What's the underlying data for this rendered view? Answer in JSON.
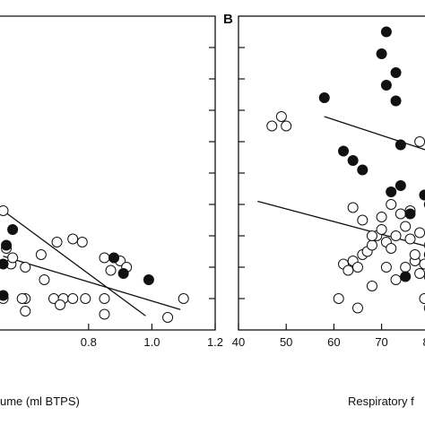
{
  "chart_data": [
    {
      "type": "scatter",
      "panel": "A",
      "xlabel": "ume (ml BTPS)",
      "ylabel": "",
      "xlim": [
        0.52,
        1.2
      ],
      "ylim": [
        0.0,
        1.0
      ],
      "xticks": [
        0.8,
        1.0,
        1.2
      ],
      "xtick_labels": [
        "0.8",
        "1.0",
        "1.2"
      ],
      "yticks": [
        0.1,
        0.2,
        0.3,
        0.4,
        0.5,
        0.6,
        0.7,
        0.8,
        0.9
      ],
      "grid": false,
      "series": [
        {
          "marker": "open-circle",
          "points": [
            [
              0.53,
              0.38
            ],
            [
              0.54,
              0.26
            ],
            [
              0.555,
              0.21
            ],
            [
              0.56,
              0.23
            ],
            [
              0.6,
              0.2
            ],
            [
              0.65,
              0.24
            ],
            [
              0.66,
              0.16
            ],
            [
              0.7,
              0.28
            ],
            [
              0.75,
              0.29
            ],
            [
              0.78,
              0.28
            ],
            [
              0.85,
              0.23
            ],
            [
              0.87,
              0.19
            ],
            [
              0.9,
              0.22
            ],
            [
              0.92,
              0.2
            ],
            [
              0.69,
              0.1
            ],
            [
              0.72,
              0.1
            ],
            [
              0.75,
              0.1
            ],
            [
              0.79,
              0.1
            ],
            [
              0.6,
              0.1
            ],
            [
              0.6,
              0.06
            ],
            [
              0.59,
              0.1
            ],
            [
              0.85,
              0.05
            ],
            [
              0.85,
              0.1
            ],
            [
              1.05,
              0.04
            ],
            [
              1.1,
              0.1
            ],
            [
              0.71,
              0.08
            ],
            [
              0.53,
              0.1
            ]
          ]
        },
        {
          "marker": "filled-circle",
          "points": [
            [
              0.54,
              0.27
            ],
            [
              0.56,
              0.32
            ],
            [
              0.88,
              0.23
            ],
            [
              0.91,
              0.18
            ],
            [
              0.99,
              0.16
            ],
            [
              0.53,
              0.21
            ],
            [
              0.53,
              0.11
            ]
          ]
        }
      ],
      "fit_lines": [
        {
          "x": [
            0.53,
            0.98
          ],
          "y": [
            0.38,
            0.045
          ]
        },
        {
          "x": [
            0.53,
            1.09
          ],
          "y": [
            0.235,
            0.065
          ]
        }
      ]
    },
    {
      "type": "scatter",
      "panel": "B",
      "xlabel": "Respiratory f",
      "ylabel": "",
      "xlim": [
        40,
        87
      ],
      "ylim": [
        0.0,
        1.0
      ],
      "xticks": [
        40,
        50,
        60,
        70,
        80
      ],
      "xtick_labels": [
        "40",
        "50",
        "60",
        "70",
        "80"
      ],
      "yticks": [
        0.1,
        0.2,
        0.3,
        0.4,
        0.5,
        0.6,
        0.7,
        0.8,
        0.9
      ],
      "grid": false,
      "series": [
        {
          "marker": "open-circle",
          "points": [
            [
              47,
              0.65
            ],
            [
              49,
              0.68
            ],
            [
              50,
              0.65
            ],
            [
              62,
              0.21
            ],
            [
              63,
              0.19
            ],
            [
              64,
              0.22
            ],
            [
              65,
              0.2
            ],
            [
              66,
              0.24
            ],
            [
              67,
              0.25
            ],
            [
              68,
              0.27
            ],
            [
              69,
              0.3
            ],
            [
              70,
              0.32
            ],
            [
              71,
              0.28
            ],
            [
              72,
              0.26
            ],
            [
              73,
              0.3
            ],
            [
              74,
              0.37
            ],
            [
              75,
              0.33
            ],
            [
              76,
              0.29
            ],
            [
              77,
              0.22
            ],
            [
              78,
              0.18
            ],
            [
              79,
              0.21
            ],
            [
              80,
              0.17
            ],
            [
              81,
              0.18
            ],
            [
              82,
              0.23
            ],
            [
              83,
              0.21
            ],
            [
              64,
              0.39
            ],
            [
              66,
              0.35
            ],
            [
              68,
              0.3
            ],
            [
              70,
              0.36
            ],
            [
              72,
              0.4
            ],
            [
              76,
              0.38
            ],
            [
              78,
              0.31
            ],
            [
              80,
              0.27
            ],
            [
              78,
              0.6
            ],
            [
              83,
              0.6
            ],
            [
              61,
              0.1
            ],
            [
              65,
              0.07
            ],
            [
              68,
              0.14
            ],
            [
              71,
              0.2
            ],
            [
              73,
              0.16
            ],
            [
              75,
              0.2
            ],
            [
              77,
              0.24
            ],
            [
              79,
              0.1
            ],
            [
              80,
              0.07
            ],
            [
              84,
              0.13
            ],
            [
              85,
              0.19
            ]
          ]
        },
        {
          "marker": "filled-circle",
          "points": [
            [
              58,
              0.74
            ],
            [
              62,
              0.57
            ],
            [
              64,
              0.54
            ],
            [
              66,
              0.51
            ],
            [
              70,
              0.88
            ],
            [
              71,
              0.95
            ],
            [
              71,
              0.78
            ],
            [
              73,
              0.82
            ],
            [
              73,
              0.73
            ],
            [
              74,
              0.59
            ],
            [
              72,
              0.44
            ],
            [
              74,
              0.46
            ],
            [
              76,
              0.37
            ],
            [
              79,
              0.43
            ],
            [
              80,
              0.4
            ],
            [
              83,
              0.38
            ],
            [
              84,
              0.24
            ],
            [
              85,
              0.31
            ],
            [
              86,
              0.29
            ],
            [
              80,
              0.24
            ],
            [
              75,
              0.17
            ],
            [
              84,
              0.15
            ]
          ]
        }
      ],
      "fit_lines": [
        {
          "x": [
            58,
            86
          ],
          "y": [
            0.68,
            0.54
          ]
        },
        {
          "x": [
            44,
            86
          ],
          "y": [
            0.41,
            0.24
          ]
        }
      ]
    }
  ],
  "labels": {
    "panel_b": "B",
    "xlabel_a": "ume (ml BTPS)",
    "xlabel_b": "Respiratory f"
  }
}
